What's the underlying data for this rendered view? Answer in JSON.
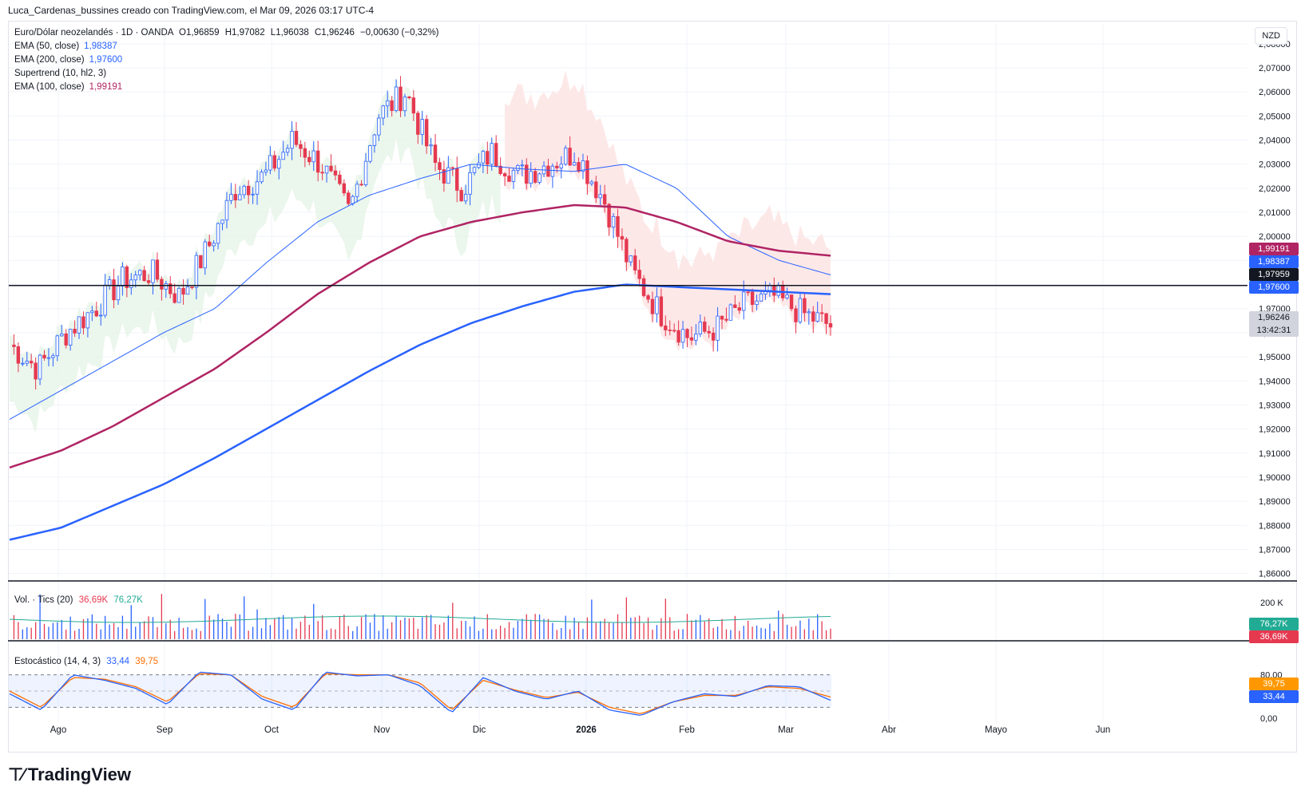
{
  "header": {
    "title": "Luca_Cardenas_bussines creado con TradingView.com, el Mar 09, 2026 03:17 UTC-4"
  },
  "symbol": {
    "name": "Euro/Dólar neozelandés · 1D · OANDA",
    "open": "O1,96859",
    "high": "H1,97082",
    "low": "L1,96038",
    "close": "C1,96246",
    "change": "−0,00630 (−0,32%)"
  },
  "indicators": [
    {
      "label": "EMA (50, close)",
      "value": "1,98387",
      "color": "#2962ff"
    },
    {
      "label": "EMA (200, close)",
      "value": "1,97600",
      "color": "#2962ff"
    },
    {
      "label": "Supertrend (10, hl2, 3)",
      "value": "",
      "color": "#131722"
    },
    {
      "label": "EMA (100, close)",
      "value": "1,99191",
      "color": "#b02464"
    }
  ],
  "currency_button": "NZD",
  "price_axis": {
    "ticks": [
      "2,08000",
      "2,07000",
      "2,06000",
      "2,05000",
      "2,04000",
      "2,03000",
      "2,02000",
      "2,01000",
      "2,00000",
      "1,99000",
      "1,98000",
      "1,97000",
      "1,96000",
      "1,95000",
      "1,94000",
      "1,93000",
      "1,92000",
      "1,91000",
      "1,90000",
      "1,89000",
      "1,88000",
      "1,87000",
      "1,86000"
    ],
    "tags": {
      "ema100": "1,99191",
      "ema50": "1,98387",
      "hline": "1,97959",
      "ema200": "1,97600",
      "last": "1,96246",
      "countdown": "13:42:31"
    }
  },
  "time_axis": [
    "Ago",
    "Sep",
    "Oct",
    "Nov",
    "Dic",
    "2026",
    "Feb",
    "Mar",
    "Abr",
    "Mayo",
    "Jun"
  ],
  "volume": {
    "label": "Vol. · Tics (20)",
    "v1": "36,69K",
    "v2": "76,27K",
    "axis": "200 K",
    "tag_ma": "76,27K",
    "tag_vol": "36,69K"
  },
  "stochastic": {
    "label": "Estocástico (14, 4, 3)",
    "k": "33,44",
    "d": "39,75",
    "axis": [
      "80,00",
      "0,00"
    ],
    "tag_d": "39,75",
    "tag_k": "33,44"
  },
  "colors": {
    "up": "#2962ff",
    "down": "#e53950",
    "ema50": "#2962ff",
    "ema200": "#2962ff",
    "ema100": "#b02464",
    "supertrend_up": "#e8f5e9",
    "supertrend_down": "#fde4e4"
  },
  "logo": {
    "text": "TradingView"
  },
  "chart_data": {
    "type": "line",
    "title": "Euro/Dólar neozelandés · 1D · OANDA",
    "ylim": [
      1.855,
      2.086
    ],
    "x_labels": [
      "Ago",
      "Sep",
      "Oct",
      "Nov",
      "Dic",
      "2026",
      "Feb",
      "Mar",
      "Abr",
      "Mayo",
      "Jun"
    ],
    "hline": 1.97959,
    "series": [
      {
        "name": "EMA (50, close)",
        "values": [
          1.924,
          1.936,
          1.948,
          1.96,
          1.97,
          1.989,
          2.006,
          2.017,
          2.024,
          2.03,
          2.028,
          2.027,
          2.03,
          2.02,
          2.0,
          1.99,
          1.984
        ]
      },
      {
        "name": "EMA (100, close)",
        "values": [
          1.904,
          1.911,
          1.921,
          1.933,
          1.945,
          1.96,
          1.976,
          1.989,
          2.0,
          2.006,
          2.01,
          2.013,
          2.012,
          2.006,
          1.998,
          1.994,
          1.992
        ]
      },
      {
        "name": "EMA (200, close)",
        "values": [
          1.874,
          1.879,
          1.888,
          1.897,
          1.908,
          1.92,
          1.932,
          1.944,
          1.955,
          1.964,
          1.971,
          1.977,
          1.98,
          1.979,
          1.978,
          1.977,
          1.976
        ]
      }
    ],
    "close_values": [
      1.955,
      1.945,
      1.96,
      1.97,
      1.982,
      1.985,
      1.975,
      1.995,
      2.02,
      2.025,
      2.04,
      2.03,
      2.01,
      2.05,
      2.06,
      2.03,
      2.02,
      2.035,
      2.025,
      2.03,
      2.035,
      2.015,
      1.985,
      1.968,
      1.958,
      1.962,
      1.972,
      1.975,
      1.968,
      1.963
    ],
    "stochastic_k": [
      45,
      15,
      80,
      70,
      55,
      25,
      85,
      80,
      35,
      15,
      85,
      78,
      80,
      60,
      10,
      75,
      50,
      35,
      50,
      15,
      5,
      30,
      45,
      40,
      60,
      58,
      33
    ],
    "stochastic_d": [
      50,
      20,
      75,
      72,
      58,
      30,
      82,
      80,
      40,
      20,
      82,
      80,
      80,
      65,
      15,
      70,
      52,
      38,
      48,
      20,
      8,
      30,
      42,
      42,
      58,
      55,
      39
    ]
  }
}
